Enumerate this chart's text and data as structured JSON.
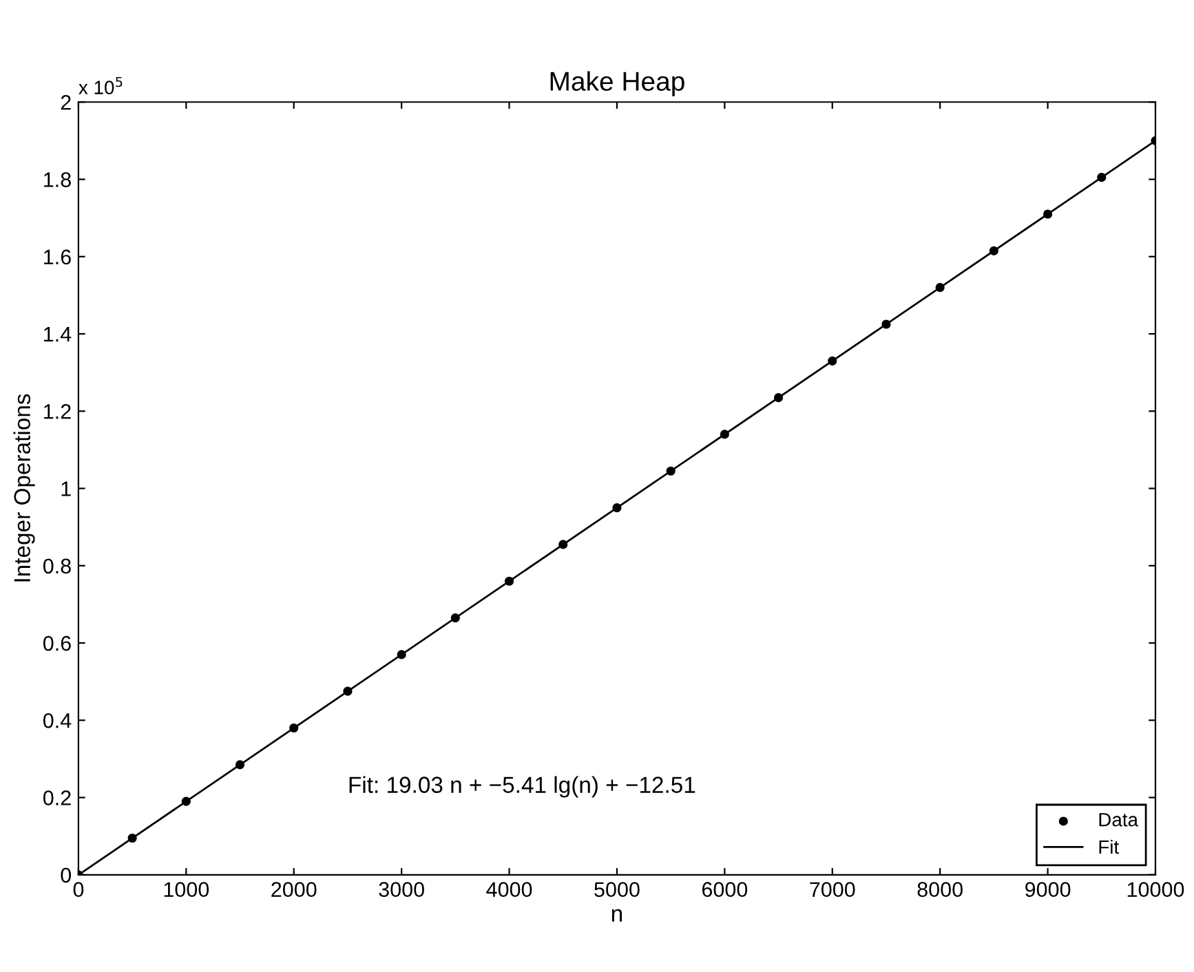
{
  "chart_data": {
    "type": "scatter",
    "title": "Make Heap",
    "xlabel": "n",
    "ylabel": "Integer Operations",
    "annotations": [
      "x 10$^{5}$",
      "Fit: 19.03 n + −5.41 lg(n) + −12.51"
    ],
    "xlim": [
      0,
      10000
    ],
    "xticks": [
      0,
      1000,
      2000,
      3000,
      4000,
      5000,
      6000,
      7000,
      8000,
      9000,
      10000
    ],
    "ylim": [
      0,
      2
    ],
    "yticks": [
      0,
      0.2,
      0.4,
      0.6,
      0.8,
      1,
      1.2,
      1.4,
      1.6,
      1.8,
      2
    ],
    "grid": false,
    "legend": "bottom right",
    "series": [
      {
        "name": "Data",
        "color": "#000000",
        "marker": "circle",
        "x": [
          0,
          500,
          1000,
          1500,
          2000,
          2500,
          3000,
          3500,
          4000,
          4500,
          5000,
          5500,
          6000,
          6500,
          7000,
          7500,
          8000,
          8500,
          9000,
          9500,
          10000
        ],
        "values": [
          0,
          0.095,
          0.19,
          0.285,
          0.38,
          0.475,
          0.57,
          0.665,
          0.76,
          0.855,
          0.95,
          1.045,
          1.14,
          1.235,
          1.33,
          1.425,
          1.52,
          1.615,
          1.71,
          1.805,
          1.9
        ]
      },
      {
        "name": "Fit",
        "type": "line",
        "color": "#000000",
        "line_style": "solid",
        "x": [
          1,
          10000
        ],
        "values": [
          0,
          1.9
        ]
      }
    ]
  }
}
